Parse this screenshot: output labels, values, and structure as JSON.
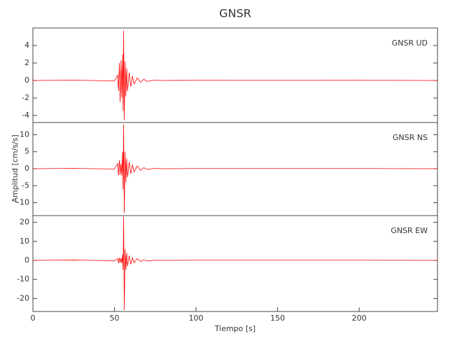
{
  "chart_data": [
    {
      "type": "line",
      "title": "GNSR",
      "annotation": "GNSR   UD",
      "color": "#ff0000",
      "x": [
        0,
        25,
        50,
        52,
        52.5,
        53,
        53.5,
        54,
        54.5,
        55,
        55.3,
        55.6,
        56,
        56.5,
        57,
        57.5,
        58,
        59,
        60,
        61,
        62,
        64,
        66,
        68,
        70,
        75,
        80,
        100,
        150,
        200,
        248
      ],
      "values": [
        0,
        0.05,
        -0.05,
        0.6,
        -1.2,
        2.0,
        -2.5,
        2.3,
        -2.0,
        3.0,
        -3.5,
        5.7,
        -4.5,
        2.2,
        -1.8,
        1.4,
        -1.2,
        0.9,
        -0.7,
        0.5,
        -0.4,
        0.3,
        -0.2,
        0.15,
        -0.1,
        0.05,
        0,
        0.03,
        0.02,
        0.03,
        0
      ],
      "xlim": [
        0,
        248
      ],
      "ylim": [
        -4.8,
        6
      ],
      "yticks": [
        -4,
        -2,
        0,
        2,
        4
      ]
    },
    {
      "type": "line",
      "y_label": "Amplitud [cm/s/s]",
      "annotation": "GNSR   NS",
      "color": "#ff0000",
      "x": [
        0,
        25,
        50,
        52,
        52.5,
        53,
        53.5,
        54,
        54.5,
        55,
        55.3,
        55.6,
        56,
        56.5,
        57,
        57.5,
        58,
        59,
        60,
        61,
        62,
        64,
        66,
        68,
        70,
        75,
        80,
        100,
        150,
        200,
        248
      ],
      "values": [
        0,
        0.1,
        -0.1,
        1.5,
        -2.0,
        2.5,
        -1.8,
        1.5,
        -2.0,
        5,
        -6,
        13,
        -13,
        5,
        -4,
        3,
        -2.5,
        2,
        -1.5,
        1.2,
        -1,
        0.8,
        -0.5,
        0.3,
        -0.2,
        0.1,
        0,
        0.05,
        0.05,
        0.05,
        0
      ],
      "xlim": [
        0,
        248
      ],
      "ylim": [
        -13.8,
        13.6
      ],
      "yticks": [
        -10,
        -5,
        0,
        5,
        10
      ]
    },
    {
      "type": "line",
      "x_label": "Tiempo [s]",
      "annotation": "GNSR   EW",
      "color": "#ff0000",
      "x": [
        0,
        25,
        50,
        52,
        52.5,
        53,
        53.5,
        54,
        54.5,
        55,
        55.3,
        55.6,
        56,
        56.5,
        57,
        57.5,
        58,
        59,
        60,
        61,
        62,
        64,
        66,
        68,
        70,
        75,
        80,
        100,
        150,
        200,
        248
      ],
      "values": [
        0,
        0.2,
        -0.2,
        1,
        -1.5,
        1.5,
        -1.2,
        1.2,
        -1.5,
        3,
        -5,
        23,
        -26,
        6,
        -5,
        4,
        -3,
        2.5,
        -2,
        1.5,
        -1.2,
        1,
        -0.6,
        0.4,
        -0.3,
        0.1,
        0,
        0.1,
        0.1,
        0.1,
        0
      ],
      "xlim": [
        0,
        248
      ],
      "xticks": [
        0,
        50,
        100,
        150,
        200
      ],
      "ylim": [
        -26.8,
        23.5
      ],
      "yticks": [
        -20,
        -10,
        0,
        10,
        20
      ]
    }
  ]
}
